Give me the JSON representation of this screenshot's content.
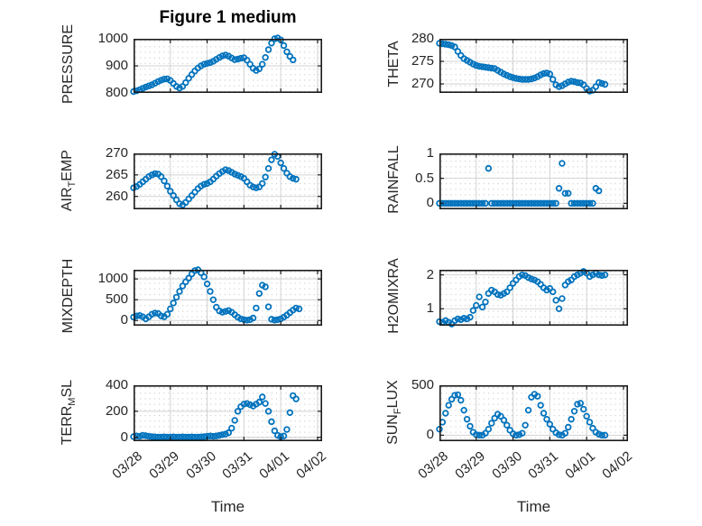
{
  "style": {
    "marker_color": "#0072BD",
    "axes_border_color": "#1a1a1a",
    "major_grid_color": "#d3d3d3",
    "minor_grid_dot_color": "#c9c9c9",
    "text_color": "#262626"
  },
  "chart_data": {
    "type": "scatter",
    "title": "Figure 1 medium",
    "xlabel": "Time",
    "x_unit": "hours since 03/28 00:00",
    "xlim": [
      0,
      123
    ],
    "grid": "major solid + minor dotted",
    "legend": "none",
    "xticks": {
      "hours": [
        0,
        24,
        48,
        72,
        96,
        120
      ],
      "labels": [
        "03/28",
        "03/29",
        "03/30",
        "03/31",
        "04/01",
        "04/02"
      ]
    },
    "subplots": [
      {
        "name": "PRESSURE",
        "ylabel_parts": [
          {
            "t": "PRESSURE"
          }
        ],
        "ylim": [
          800,
          1000
        ],
        "yticks": [
          {
            "v": 800,
            "label": "800"
          },
          {
            "v": 900,
            "label": "900"
          },
          {
            "v": 1000,
            "label": "1000"
          }
        ],
        "x": [
          0,
          2,
          4,
          6,
          8,
          10,
          12,
          14,
          16,
          18,
          20,
          22,
          24,
          26,
          28,
          30,
          32,
          34,
          36,
          38,
          40,
          42,
          44,
          46,
          48,
          50,
          52,
          54,
          56,
          58,
          60,
          62,
          64,
          66,
          68,
          70,
          72,
          74,
          76,
          78,
          80,
          82,
          84,
          86,
          88,
          90,
          92,
          94,
          96,
          98,
          100,
          102,
          104
        ],
        "y": [
          805,
          808,
          812,
          817,
          822,
          826,
          830,
          836,
          842,
          847,
          851,
          852,
          846,
          835,
          824,
          818,
          824,
          838,
          854,
          868,
          881,
          892,
          900,
          906,
          909,
          912,
          917,
          924,
          931,
          937,
          940,
          936,
          929,
          923,
          925,
          928,
          930,
          921,
          906,
          891,
          883,
          889,
          906,
          931,
          960,
          984,
          1000,
          1003,
          996,
          975,
          952,
          935,
          922
        ]
      },
      {
        "name": "THETA",
        "ylabel_parts": [
          {
            "t": "THETA"
          }
        ],
        "ylim": [
          268,
          280
        ],
        "yticks": [
          {
            "v": 270,
            "label": "270"
          },
          {
            "v": 275,
            "label": "275"
          },
          {
            "v": 280,
            "label": "280"
          }
        ],
        "x": [
          0,
          2,
          4,
          6,
          8,
          10,
          12,
          14,
          16,
          18,
          20,
          22,
          24,
          26,
          28,
          30,
          32,
          34,
          36,
          38,
          40,
          42,
          44,
          46,
          48,
          50,
          52,
          54,
          56,
          58,
          60,
          62,
          64,
          66,
          68,
          70,
          72,
          74,
          76,
          78,
          80,
          82,
          84,
          86,
          88,
          90,
          92,
          94,
          96,
          98,
          100,
          102,
          104,
          106,
          108
        ],
        "y": [
          279.0,
          278.9,
          278.8,
          278.7,
          278.5,
          278.2,
          277.2,
          276.3,
          275.6,
          275.2,
          274.8,
          274.4,
          274.1,
          273.9,
          273.8,
          273.7,
          273.6,
          273.5,
          273.4,
          273.0,
          272.6,
          272.2,
          271.9,
          271.6,
          271.4,
          271.2,
          271.1,
          271.0,
          271.0,
          271.0,
          271.1,
          271.3,
          271.6,
          272.0,
          272.3,
          272.4,
          272.2,
          271.0,
          269.8,
          269.4,
          269.6,
          270.0,
          270.4,
          270.6,
          270.5,
          270.3,
          270.2,
          269.8,
          269.0,
          268.4,
          268.6,
          269.4,
          270.3,
          270.1,
          269.9
        ]
      },
      {
        "name": "AIR_TEMP",
        "ylabel_parts": [
          {
            "t": "AIR"
          },
          {
            "t": "T",
            "sub": true
          },
          {
            "t": "EMP"
          }
        ],
        "ylim": [
          257,
          270
        ],
        "yticks": [
          {
            "v": 260,
            "label": "260"
          },
          {
            "v": 265,
            "label": "265"
          },
          {
            "v": 270,
            "label": "270"
          }
        ],
        "x": [
          0,
          2,
          4,
          6,
          8,
          10,
          12,
          14,
          16,
          18,
          20,
          22,
          24,
          26,
          28,
          30,
          32,
          34,
          36,
          38,
          40,
          42,
          44,
          46,
          48,
          50,
          52,
          54,
          56,
          58,
          60,
          62,
          64,
          66,
          68,
          70,
          72,
          74,
          76,
          78,
          80,
          82,
          84,
          86,
          88,
          90,
          92,
          94,
          96,
          98,
          100,
          102,
          104,
          106
        ],
        "y": [
          262.0,
          262.3,
          262.8,
          263.4,
          264.0,
          264.6,
          265.0,
          265.3,
          265.2,
          264.6,
          263.6,
          262.4,
          261.2,
          260.2,
          259.2,
          258.3,
          258.0,
          258.6,
          259.4,
          260.2,
          261.0,
          261.8,
          262.4,
          262.8,
          263.0,
          263.4,
          264.0,
          264.7,
          265.3,
          265.8,
          266.2,
          266.0,
          265.6,
          265.2,
          264.9,
          264.6,
          264.2,
          263.4,
          262.6,
          262.2,
          262.0,
          262.2,
          263.0,
          264.5,
          266.5,
          268.5,
          269.8,
          269.3,
          267.8,
          266.5,
          265.4,
          264.6,
          264.2,
          264.0
        ]
      },
      {
        "name": "RAINFALL",
        "ylabel_parts": [
          {
            "t": "RAINFALL"
          }
        ],
        "ylim": [
          -0.12,
          1.0
        ],
        "yticks": [
          {
            "v": 0,
            "label": "0"
          },
          {
            "v": 0.5,
            "label": "0.5"
          },
          {
            "v": 1,
            "label": "1"
          }
        ],
        "x": [
          0,
          2,
          4,
          6,
          8,
          10,
          12,
          14,
          16,
          18,
          20,
          22,
          24,
          26,
          28,
          30,
          32,
          34,
          36,
          38,
          40,
          42,
          44,
          46,
          48,
          50,
          52,
          54,
          56,
          58,
          60,
          62,
          64,
          66,
          68,
          70,
          72,
          74,
          76,
          78,
          80,
          82,
          84,
          86,
          88,
          90,
          92,
          94,
          96,
          98,
          100,
          102,
          104
        ],
        "y": [
          0,
          0,
          0,
          0,
          0,
          0,
          0,
          0,
          0,
          0,
          0,
          0,
          0,
          0,
          0,
          0,
          0.7,
          0,
          0,
          0,
          0,
          0,
          0,
          0,
          0,
          0,
          0,
          0,
          0,
          0,
          0,
          0,
          0,
          0,
          0,
          0,
          0,
          0,
          0,
          0.3,
          0.8,
          0.2,
          0.2,
          0,
          0,
          0,
          0,
          0,
          0,
          0,
          0,
          0.3,
          0.25
        ]
      },
      {
        "name": "MIXDEPTH",
        "ylabel_parts": [
          {
            "t": "MIXDEPTH"
          }
        ],
        "ylim": [
          -125,
          1220
        ],
        "yticks": [
          {
            "v": 0,
            "label": "0"
          },
          {
            "v": 500,
            "label": "500"
          },
          {
            "v": 1000,
            "label": "1000"
          }
        ],
        "x": [
          0,
          2,
          4,
          6,
          8,
          10,
          12,
          14,
          16,
          18,
          20,
          22,
          24,
          26,
          28,
          30,
          32,
          34,
          36,
          38,
          40,
          42,
          44,
          46,
          48,
          50,
          52,
          54,
          56,
          58,
          60,
          62,
          64,
          66,
          68,
          70,
          72,
          74,
          76,
          78,
          80,
          82,
          84,
          86,
          88,
          90,
          92,
          94,
          96,
          98,
          100,
          102,
          104,
          106,
          108
        ],
        "y": [
          80,
          110,
          120,
          90,
          40,
          90,
          150,
          180,
          170,
          110,
          90,
          150,
          280,
          420,
          560,
          700,
          830,
          930,
          1020,
          1120,
          1200,
          1220,
          1150,
          1050,
          880,
          700,
          500,
          320,
          230,
          200,
          220,
          240,
          200,
          140,
          80,
          40,
          20,
          10,
          20,
          60,
          300,
          650,
          850,
          810,
          330,
          30,
          10,
          20,
          40,
          80,
          130,
          190,
          250,
          300,
          280
        ]
      },
      {
        "name": "H2OMIXRA",
        "ylabel_parts": [
          {
            "t": "H2OMIXRA"
          }
        ],
        "ylim": [
          0.5,
          2.15
        ],
        "yticks": [
          {
            "v": 1,
            "label": "1"
          },
          {
            "v": 2,
            "label": "2"
          }
        ],
        "x": [
          0,
          2,
          4,
          6,
          8,
          10,
          12,
          14,
          16,
          18,
          20,
          22,
          24,
          26,
          28,
          30,
          32,
          34,
          36,
          38,
          40,
          42,
          44,
          46,
          48,
          50,
          52,
          54,
          56,
          58,
          60,
          62,
          64,
          66,
          68,
          70,
          72,
          74,
          76,
          78,
          80,
          82,
          84,
          86,
          88,
          90,
          92,
          94,
          96,
          98,
          100,
          102,
          104,
          106,
          108
        ],
        "y": [
          0.62,
          0.6,
          0.65,
          0.6,
          0.55,
          0.65,
          0.7,
          0.68,
          0.72,
          0.7,
          0.75,
          0.95,
          1.1,
          1.35,
          1.05,
          1.2,
          1.45,
          1.55,
          1.5,
          1.42,
          1.4,
          1.45,
          1.5,
          1.62,
          1.75,
          1.85,
          1.95,
          2.0,
          1.98,
          1.92,
          1.88,
          1.85,
          1.8,
          1.72,
          1.62,
          1.55,
          1.6,
          1.5,
          1.25,
          1.0,
          1.3,
          1.7,
          1.8,
          1.85,
          1.95,
          2.0,
          2.05,
          2.1,
          2.05,
          1.95,
          2.0,
          2.05,
          2.0,
          1.98,
          2.0
        ]
      },
      {
        "name": "TERR_MSL",
        "ylabel_parts": [
          {
            "t": "TERR"
          },
          {
            "t": "M",
            "sub": true
          },
          {
            "t": "SL"
          }
        ],
        "ylim": [
          -30,
          400
        ],
        "yticks": [
          {
            "v": 0,
            "label": "0"
          },
          {
            "v": 200,
            "label": "200"
          },
          {
            "v": 400,
            "label": "400"
          }
        ],
        "x": [
          0,
          2,
          4,
          6,
          8,
          10,
          12,
          14,
          16,
          18,
          20,
          22,
          24,
          26,
          28,
          30,
          32,
          34,
          36,
          38,
          40,
          42,
          44,
          46,
          48,
          50,
          52,
          54,
          56,
          58,
          60,
          62,
          64,
          66,
          68,
          70,
          72,
          74,
          76,
          78,
          80,
          82,
          84,
          86,
          88,
          90,
          92,
          94,
          96,
          98,
          100,
          102,
          104,
          106
        ],
        "y": [
          5,
          10,
          8,
          15,
          12,
          8,
          5,
          3,
          2,
          2,
          3,
          2,
          2,
          3,
          2,
          2,
          3,
          2,
          2,
          3,
          2,
          2,
          3,
          5,
          8,
          10,
          8,
          10,
          15,
          20,
          25,
          35,
          70,
          130,
          200,
          235,
          255,
          260,
          250,
          240,
          255,
          270,
          310,
          260,
          200,
          120,
          50,
          15,
          5,
          10,
          60,
          190,
          320,
          295
        ]
      },
      {
        "name": "SUN_FLUX",
        "ylabel_parts": [
          {
            "t": "SUN"
          },
          {
            "t": "F",
            "sub": true
          },
          {
            "t": "LUX"
          }
        ],
        "ylim": [
          -60,
          500
        ],
        "yticks": [
          {
            "v": 0,
            "label": "0"
          },
          {
            "v": 500,
            "label": "500"
          }
        ],
        "x": [
          0,
          2,
          4,
          6,
          8,
          10,
          12,
          14,
          16,
          18,
          20,
          22,
          24,
          26,
          28,
          30,
          32,
          34,
          36,
          38,
          40,
          42,
          44,
          46,
          48,
          50,
          52,
          54,
          56,
          58,
          60,
          62,
          64,
          66,
          68,
          70,
          72,
          74,
          76,
          78,
          80,
          82,
          84,
          86,
          88,
          90,
          92,
          94,
          96,
          98,
          100,
          102,
          104,
          106,
          108
        ],
        "y": [
          60,
          130,
          220,
          300,
          360,
          400,
          405,
          350,
          250,
          160,
          90,
          30,
          5,
          0,
          0,
          20,
          60,
          120,
          170,
          210,
          190,
          150,
          100,
          50,
          15,
          0,
          5,
          20,
          100,
          250,
          380,
          410,
          390,
          300,
          220,
          160,
          110,
          60,
          25,
          5,
          0,
          20,
          80,
          160,
          240,
          310,
          320,
          260,
          190,
          130,
          70,
          30,
          10,
          0,
          0
        ]
      }
    ]
  }
}
